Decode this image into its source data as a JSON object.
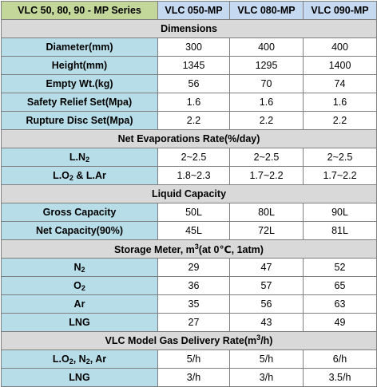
{
  "header": {
    "series_title": "VLC 50, 80, 90 - MP Series",
    "models": [
      "VLC 050-MP",
      "VLC 080-MP",
      "VLC 090-MP"
    ]
  },
  "sections": {
    "dimensions": {
      "title": "Dimensions",
      "rows": [
        {
          "label": "Diameter(mm)",
          "values": [
            "300",
            "400",
            "400"
          ]
        },
        {
          "label": "Height(mm)",
          "values": [
            "1345",
            "1295",
            "1400"
          ]
        },
        {
          "label": "Empty Wt.(kg)",
          "values": [
            "56",
            "70",
            "74"
          ]
        },
        {
          "label": "Safety Relief Set(Mpa)",
          "values": [
            "1.6",
            "1.6",
            "1.6"
          ]
        },
        {
          "label": "Rupture Disc Set(Mpa)",
          "values": [
            "2.2",
            "2.2",
            "2.2"
          ]
        }
      ]
    },
    "evaporation": {
      "title": "Net Evaporations Rate(%/day)",
      "rows": [
        {
          "label_pre": "L.N",
          "label_sub": "2",
          "values": [
            "2~2.5",
            "2~2.5",
            "2~2.5"
          ]
        },
        {
          "label_pre": "L.O",
          "label_sub": "2",
          "label_post": " & L.Ar",
          "values": [
            "1.8~2.3",
            "1.7~2.2",
            "1.7~2.2"
          ]
        }
      ]
    },
    "capacity": {
      "title": "Liquid Capacity",
      "rows": [
        {
          "label": "Gross Capacity",
          "values": [
            "50L",
            "80L",
            "90L"
          ]
        },
        {
          "label": "Net Capacity(90%)",
          "values": [
            "45L",
            "72L",
            "81L"
          ]
        }
      ]
    },
    "storage": {
      "title_pre": "Storage Meter, m",
      "title_sup": "3",
      "title_post": "(at 0℃, 1atm)",
      "rows": [
        {
          "label_pre": "N",
          "label_sub": "2",
          "values": [
            "29",
            "47",
            "52"
          ]
        },
        {
          "label_pre": "O",
          "label_sub": "2",
          "values": [
            "36",
            "57",
            "65"
          ]
        },
        {
          "label": "Ar",
          "values": [
            "35",
            "56",
            "63"
          ]
        },
        {
          "label": "LNG",
          "values": [
            "27",
            "43",
            "49"
          ]
        }
      ]
    },
    "delivery": {
      "title_pre": "VLC Model Gas Delivery Rate(m",
      "title_sup": "3",
      "title_post": "/h)",
      "rows": [
        {
          "label_pre": "L.O",
          "label_sub": "2",
          "label_post": ", N",
          "label_sub2": "2",
          "label_post2": ", Ar",
          "values": [
            "5/h",
            "5/h",
            "6/h"
          ]
        },
        {
          "label": "LNG",
          "values": [
            "3/h",
            "3/h",
            "3.5/h"
          ]
        }
      ]
    }
  }
}
